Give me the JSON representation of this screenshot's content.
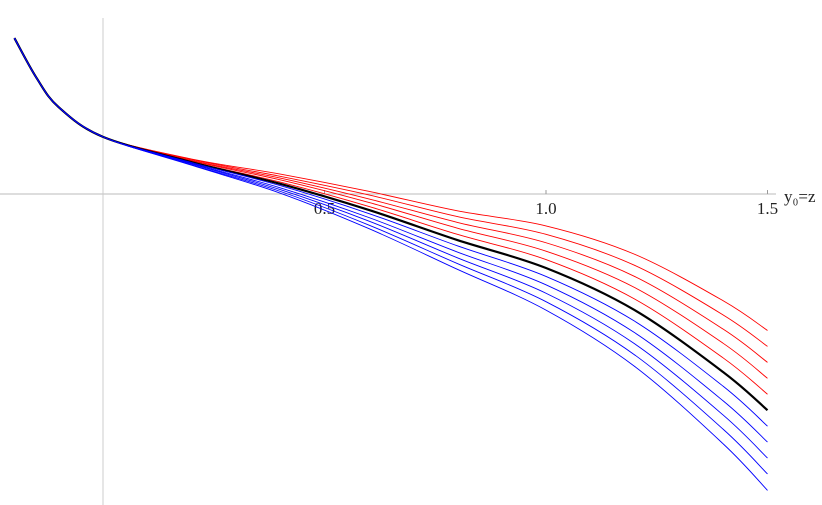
{
  "chart_data": {
    "type": "line",
    "x": [
      -0.2,
      -0.15,
      -0.1,
      0,
      0.2,
      0.4,
      0.6,
      0.8,
      1.0,
      1.2,
      1.4,
      1.5
    ],
    "series": [
      {
        "color": "#ff0000",
        "values": [
          0.352,
          0.262,
          0.196,
          0.129,
          0.079,
          0.045,
          0.006,
          -0.038,
          -0.072,
          -0.136,
          -0.241,
          -0.308
        ]
      },
      {
        "color": "#ff0000",
        "values": [
          0.352,
          0.262,
          0.196,
          0.129,
          0.078,
          0.04,
          -0.002,
          -0.051,
          -0.091,
          -0.161,
          -0.273,
          -0.344
        ]
      },
      {
        "color": "#ff0000",
        "values": [
          0.352,
          0.262,
          0.196,
          0.129,
          0.076,
          0.036,
          -0.011,
          -0.064,
          -0.11,
          -0.186,
          -0.305,
          -0.38
        ]
      },
      {
        "color": "#ff0000",
        "values": [
          0.352,
          0.262,
          0.196,
          0.129,
          0.075,
          0.032,
          -0.019,
          -0.077,
          -0.129,
          -0.211,
          -0.337,
          -0.416
        ]
      },
      {
        "color": "#ff0000",
        "values": [
          0.352,
          0.262,
          0.196,
          0.129,
          0.073,
          0.027,
          -0.028,
          -0.091,
          -0.148,
          -0.237,
          -0.37,
          -0.452
        ]
      },
      {
        "color": "#000000",
        "values": [
          0.352,
          0.262,
          0.196,
          0.129,
          0.072,
          0.023,
          -0.036,
          -0.104,
          -0.167,
          -0.262,
          -0.402,
          -0.488
        ]
      },
      {
        "color": "#0000ff",
        "values": [
          0.352,
          0.262,
          0.196,
          0.129,
          0.071,
          0.019,
          -0.044,
          -0.117,
          -0.186,
          -0.287,
          -0.434,
          -0.524
        ]
      },
      {
        "color": "#0000ff",
        "values": [
          0.352,
          0.262,
          0.196,
          0.129,
          0.069,
          0.014,
          -0.053,
          -0.131,
          -0.205,
          -0.313,
          -0.467,
          -0.56
        ]
      },
      {
        "color": "#0000ff",
        "values": [
          0.352,
          0.262,
          0.196,
          0.129,
          0.068,
          0.01,
          -0.061,
          -0.144,
          -0.224,
          -0.338,
          -0.499,
          -0.596
        ]
      },
      {
        "color": "#0000ff",
        "values": [
          0.352,
          0.262,
          0.196,
          0.129,
          0.066,
          0.006,
          -0.07,
          -0.157,
          -0.243,
          -0.363,
          -0.531,
          -0.632
        ]
      },
      {
        "color": "#0000ff",
        "values": [
          0.352,
          0.262,
          0.196,
          0.129,
          0.065,
          0.002,
          -0.078,
          -0.17,
          -0.262,
          -0.389,
          -0.564,
          -0.669
        ]
      }
    ],
    "x_label": "y₀=z",
    "xlim": [
      -0.2325,
      1.5192
    ],
    "ylim": [
      -0.702,
      0.438
    ],
    "xticks": [
      0.5,
      {
        "value": 1.0,
        "label": "1.0"
      },
      1.5
    ]
  }
}
